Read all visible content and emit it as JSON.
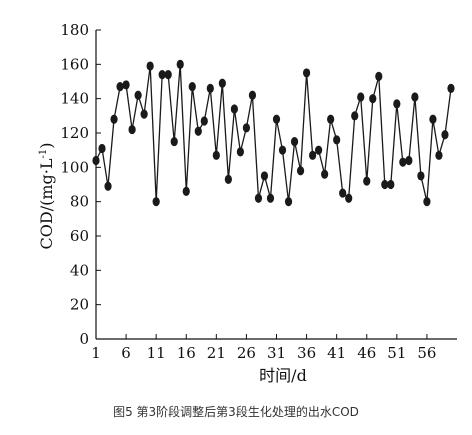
{
  "chart_data": {
    "type": "line",
    "title": "",
    "xlabel": "时间/d",
    "ylabel": "COD/(mg·L⁻¹)",
    "ylabel_main": "COD/(mg·L",
    "ylabel_sup": "-1",
    "ylabel_end": ")",
    "xlim": [
      1,
      61
    ],
    "ylim": [
      0,
      180
    ],
    "xticks": [
      1,
      6,
      11,
      16,
      21,
      26,
      31,
      36,
      41,
      46,
      51,
      56
    ],
    "yticks": [
      0,
      20,
      40,
      60,
      80,
      100,
      120,
      140,
      160,
      180
    ],
    "grid": false,
    "legend": "none",
    "series": [
      {
        "color": "#1a1a1a",
        "marker": "filled-circle",
        "x": [
          1,
          2,
          3,
          4,
          5,
          6,
          7,
          8,
          9,
          10,
          11,
          12,
          13,
          14,
          15,
          16,
          17,
          18,
          19,
          20,
          21,
          22,
          23,
          24,
          25,
          26,
          27,
          28,
          29,
          30,
          31,
          32,
          33,
          34,
          35,
          36,
          37,
          38,
          39,
          40,
          41,
          42,
          43,
          44,
          45,
          46,
          47,
          48,
          49,
          50,
          51,
          52,
          53,
          54,
          55,
          56,
          57,
          58,
          59,
          60
        ],
        "y": [
          104,
          111,
          89,
          128,
          147,
          148,
          122,
          142,
          131,
          159,
          80,
          154,
          154,
          115,
          160,
          86,
          147,
          121,
          127,
          146,
          107,
          149,
          93,
          134,
          109,
          123,
          142,
          82,
          95,
          82,
          128,
          110,
          80,
          115,
          98,
          155,
          107,
          110,
          96,
          128,
          116,
          85,
          82,
          130,
          141,
          92,
          140,
          153,
          90,
          90,
          137,
          103,
          104,
          141,
          95,
          80,
          128,
          107,
          119,
          146
        ]
      }
    ]
  },
  "caption": "图5   第3阶段调整后第3段生化处理的出水COD"
}
